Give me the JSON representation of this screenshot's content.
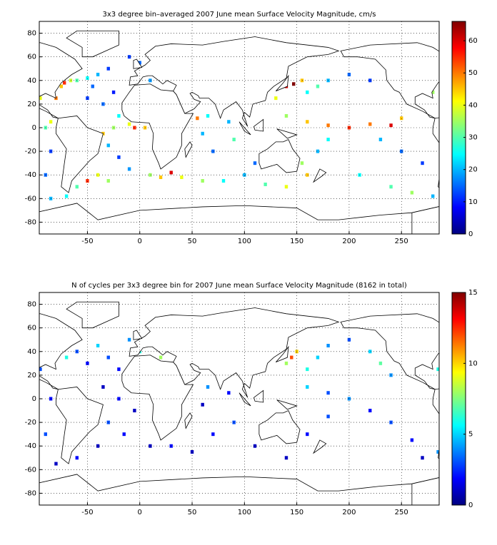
{
  "chart_data": [
    {
      "type": "heatmap",
      "title": "3x3 degree bin–averaged 2007 June mean Surface Velocity Magnitude, cm/s",
      "colormap": "jet",
      "clim": [
        0,
        66
      ],
      "cticks": [
        0,
        10,
        20,
        30,
        40,
        50,
        60
      ],
      "xlim": [
        -96,
        286
      ],
      "ylim": [
        -90,
        90
      ],
      "xticks": [
        -50,
        0,
        50,
        100,
        150,
        200,
        250
      ],
      "yticks": [
        -80,
        -60,
        -40,
        -20,
        0,
        20,
        40,
        60,
        80
      ],
      "grid": true,
      "x": [
        -75,
        -72,
        -66,
        -60,
        -50,
        -45,
        -40,
        -30,
        -25,
        -35,
        -50,
        -20,
        -10,
        -5,
        5,
        -25,
        -35,
        -30,
        -20,
        -10,
        -40,
        -50,
        -30,
        -60,
        -70,
        -85,
        -90,
        -85,
        -90,
        -85,
        10,
        20,
        30,
        40,
        60,
        80,
        100,
        70,
        90,
        60,
        55,
        65,
        85,
        110,
        120,
        140,
        160,
        155,
        170,
        180,
        130,
        140,
        147,
        155,
        160,
        170,
        180,
        200,
        220,
        140,
        160,
        180,
        200,
        220,
        240,
        250,
        230,
        250,
        270,
        210,
        240,
        260,
        280,
        285,
        280,
        -95,
        -80,
        10,
        0,
        -10,
        20
      ],
      "y": [
        35,
        38,
        40,
        40,
        42,
        35,
        45,
        50,
        30,
        20,
        25,
        10,
        3,
        0,
        0,
        0,
        -5,
        -15,
        -25,
        -35,
        -40,
        -45,
        -45,
        -50,
        -58,
        -60,
        -40,
        -20,
        0,
        5,
        -40,
        -42,
        -38,
        -42,
        -45,
        -45,
        -40,
        -20,
        -10,
        -5,
        8,
        10,
        5,
        -30,
        -48,
        -50,
        -40,
        -30,
        -20,
        -10,
        25,
        35,
        37,
        40,
        30,
        35,
        40,
        45,
        40,
        10,
        5,
        2,
        0,
        3,
        2,
        8,
        -10,
        -20,
        -30,
        -40,
        -50,
        -55,
        -58,
        40,
        30,
        25,
        25,
        40,
        55,
        60,
        60
      ],
      "values": [
        45,
        55,
        38,
        30,
        25,
        15,
        20,
        12,
        10,
        15,
        12,
        25,
        40,
        55,
        45,
        35,
        45,
        20,
        12,
        18,
        40,
        55,
        35,
        30,
        25,
        20,
        15,
        12,
        30,
        40,
        35,
        45,
        60,
        40,
        35,
        25,
        20,
        15,
        30,
        20,
        50,
        25,
        20,
        15,
        30,
        40,
        45,
        35,
        20,
        25,
        40,
        60,
        66,
        45,
        25,
        30,
        20,
        15,
        12,
        35,
        45,
        50,
        55,
        50,
        60,
        45,
        20,
        15,
        12,
        25,
        30,
        35,
        20,
        50,
        35,
        40,
        50,
        18,
        15,
        12,
        10
      ]
    },
    {
      "type": "heatmap",
      "title": "N of cycles per 3x3 degree bin for 2007 June mean Surface Velocity Magnitude (8162 in total)",
      "colormap": "jet",
      "clim": [
        0,
        15
      ],
      "cticks": [
        0,
        5,
        10,
        15
      ],
      "xlim": [
        -96,
        286
      ],
      "ylim": [
        -90,
        90
      ],
      "xticks": [
        -50,
        0,
        50,
        100,
        150,
        200,
        250
      ],
      "yticks": [
        -80,
        -60,
        -40,
        -20,
        0,
        20,
        40,
        60,
        80
      ],
      "grid": true,
      "x": [
        -70,
        -60,
        -50,
        -40,
        -30,
        -20,
        -10,
        -35,
        -20,
        -5,
        -30,
        -15,
        -40,
        -60,
        -80,
        -90,
        -85,
        10,
        30,
        50,
        70,
        90,
        60,
        65,
        85,
        110,
        140,
        160,
        180,
        140,
        145,
        150,
        160,
        170,
        180,
        200,
        220,
        230,
        240,
        160,
        180,
        200,
        220,
        240,
        260,
        270,
        285,
        280,
        285,
        -95,
        0,
        20,
        10
      ],
      "y": [
        35,
        40,
        30,
        45,
        35,
        25,
        50,
        10,
        0,
        -10,
        -20,
        -30,
        -40,
        -50,
        -55,
        -30,
        0,
        -40,
        -40,
        -45,
        -30,
        -20,
        -5,
        10,
        5,
        -40,
        -50,
        -30,
        -15,
        30,
        35,
        40,
        25,
        35,
        45,
        50,
        40,
        30,
        20,
        10,
        5,
        0,
        -10,
        -20,
        -35,
        -50,
        -45,
        35,
        25,
        25,
        40,
        35,
        60
      ],
      "values": [
        6,
        3,
        2,
        5,
        3,
        2,
        4,
        1,
        2,
        1,
        3,
        2,
        1,
        2,
        1,
        3,
        2,
        1,
        2,
        1,
        2,
        3,
        1,
        4,
        2,
        1,
        1,
        2,
        3,
        8,
        12,
        10,
        6,
        5,
        4,
        3,
        5,
        7,
        4,
        5,
        3,
        4,
        2,
        3,
        2,
        1,
        4,
        10,
        6,
        3,
        6,
        8,
        2
      ]
    }
  ]
}
